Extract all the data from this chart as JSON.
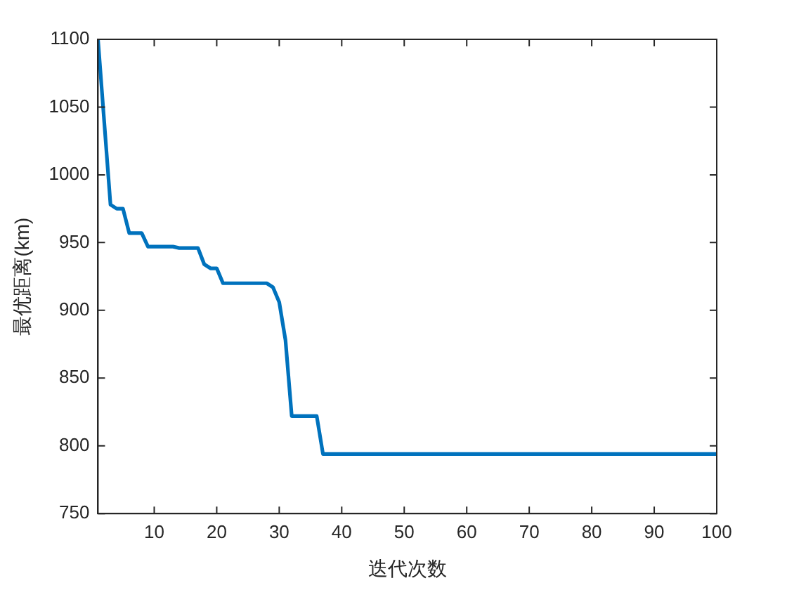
{
  "chart_data": {
    "type": "line",
    "xlabel": "迭代次数",
    "ylabel": "最优距离(km)",
    "series": [
      {
        "color": "#0072bd",
        "x": [
          1,
          2,
          3,
          4,
          5,
          6,
          8,
          9,
          13,
          14,
          17,
          18,
          19,
          20,
          21,
          28,
          29,
          30,
          31,
          32,
          36,
          37,
          100
        ],
        "values": [
          1100,
          1039,
          978,
          975,
          975,
          957,
          957,
          947,
          947,
          946,
          946,
          934,
          931,
          931,
          920,
          920,
          917,
          906,
          878,
          822,
          822,
          794,
          794
        ]
      }
    ],
    "xlim": [
      1,
      100
    ],
    "xticks": [
      10,
      20,
      30,
      40,
      50,
      60,
      70,
      80,
      90,
      100
    ],
    "ylim": [
      750,
      1100
    ],
    "yticks": [
      750,
      800,
      850,
      900,
      950,
      1000,
      1050,
      1100
    ],
    "grid": false,
    "legend": false,
    "marker": "none",
    "line_style": "solid"
  }
}
